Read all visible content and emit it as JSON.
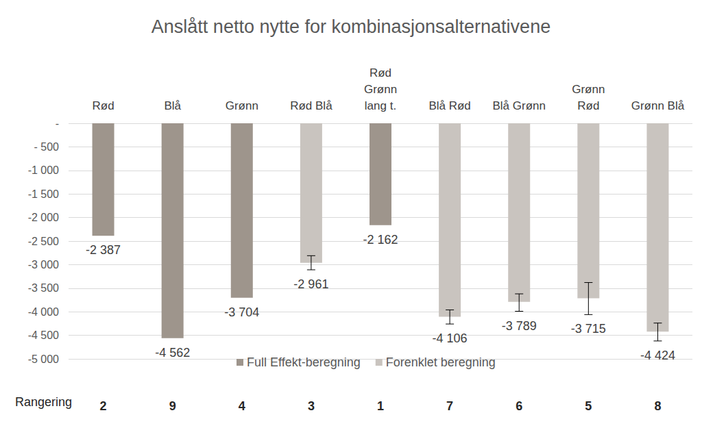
{
  "chart_data": {
    "type": "bar",
    "title": "Anslått netto nytte for kombinasjonsalternativene",
    "categories": [
      "Rød",
      "Blå",
      "Grønn",
      "Rød Blå",
      "Rød\nGrønn\nlang t.",
      "Blå Rød",
      "Blå Grønn",
      "Grønn\nRød",
      "Grønn Blå"
    ],
    "series": [
      {
        "name": "Full Effekt-beregning",
        "color": "#9e958c",
        "values": [
          -2387,
          -4562,
          -3704,
          null,
          -2162,
          null,
          null,
          null,
          null
        ],
        "value_labels": [
          "-2 387",
          "-4 562",
          "-3 704",
          null,
          "-2 162",
          null,
          null,
          null,
          null
        ]
      },
      {
        "name": "Forenklet beregning",
        "color": "#c9c4bf",
        "values": [
          null,
          null,
          null,
          -2961,
          null,
          -4106,
          -3789,
          -3715,
          -4424
        ],
        "value_labels": [
          null,
          null,
          null,
          "-2 961",
          null,
          "-4 106",
          "-3 789",
          "-3 715",
          "-4 424"
        ],
        "error_low": [
          null,
          null,
          null,
          -3110,
          null,
          -4260,
          -3990,
          -4060,
          -4620
        ],
        "error_high": [
          null,
          null,
          null,
          -2810,
          null,
          -3960,
          -3620,
          -3380,
          -4240
        ]
      }
    ],
    "ylim": [
      -5000,
      0
    ],
    "yticks": [
      {
        "value": -5000,
        "label": "-5 000"
      },
      {
        "value": -4500,
        "label": "-4 500"
      },
      {
        "value": -4000,
        "label": "-4 000"
      },
      {
        "value": -3500,
        "label": "-3 500"
      },
      {
        "value": -3000,
        "label": "-3 000"
      },
      {
        "value": -2500,
        "label": "-2 500"
      },
      {
        "value": -2000,
        "label": "-2 000"
      },
      {
        "value": -1500,
        "label": "-1 500"
      },
      {
        "value": -1000,
        "label": "-1 000"
      },
      {
        "value": -500,
        "label": "- 500"
      },
      {
        "value": 0,
        "label": "-"
      }
    ],
    "grid": true,
    "legend": "bottom",
    "data_labels": true,
    "ranking": {
      "label": "Rangering",
      "values": [
        2,
        9,
        4,
        3,
        1,
        7,
        6,
        5,
        8
      ]
    }
  }
}
